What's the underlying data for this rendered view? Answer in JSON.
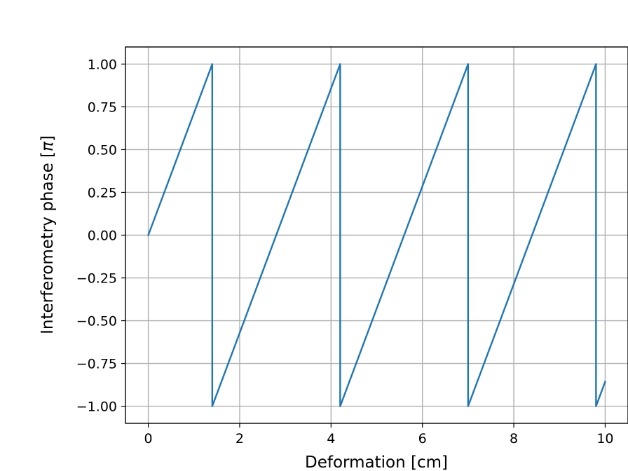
{
  "chart_data": {
    "type": "line",
    "title": "",
    "xlabel": "Deformation [cm]",
    "ylabel_main": "Interferometry phase [",
    "ylabel_symbol": "π",
    "ylabel_end": "]",
    "xlim": [
      -0.5,
      10.5
    ],
    "ylim": [
      -1.1,
      1.1
    ],
    "grid": true,
    "x_ticks": [
      0,
      2,
      4,
      6,
      8,
      10
    ],
    "x_tick_labels": [
      "0",
      "2",
      "4",
      "6",
      "8",
      "10"
    ],
    "y_ticks": [
      1.0,
      0.75,
      0.5,
      0.25,
      0.0,
      -0.25,
      -0.5,
      -0.75,
      -1.0
    ],
    "y_tick_labels": [
      "1.00",
      "0.75",
      "0.50",
      "0.25",
      "0.00",
      "−0.25",
      "−0.50",
      "−0.75",
      "−1.00"
    ],
    "series": [
      {
        "color": "#1f77b4",
        "x": [
          0,
          1.4,
          1.4,
          4.2,
          4.2,
          7.0,
          7.0,
          9.8,
          9.8,
          10.0
        ],
        "y": [
          0,
          1.0,
          -1.0,
          1.0,
          -1.0,
          1.0,
          -1.0,
          1.0,
          -1.0,
          -0.857
        ]
      }
    ]
  }
}
